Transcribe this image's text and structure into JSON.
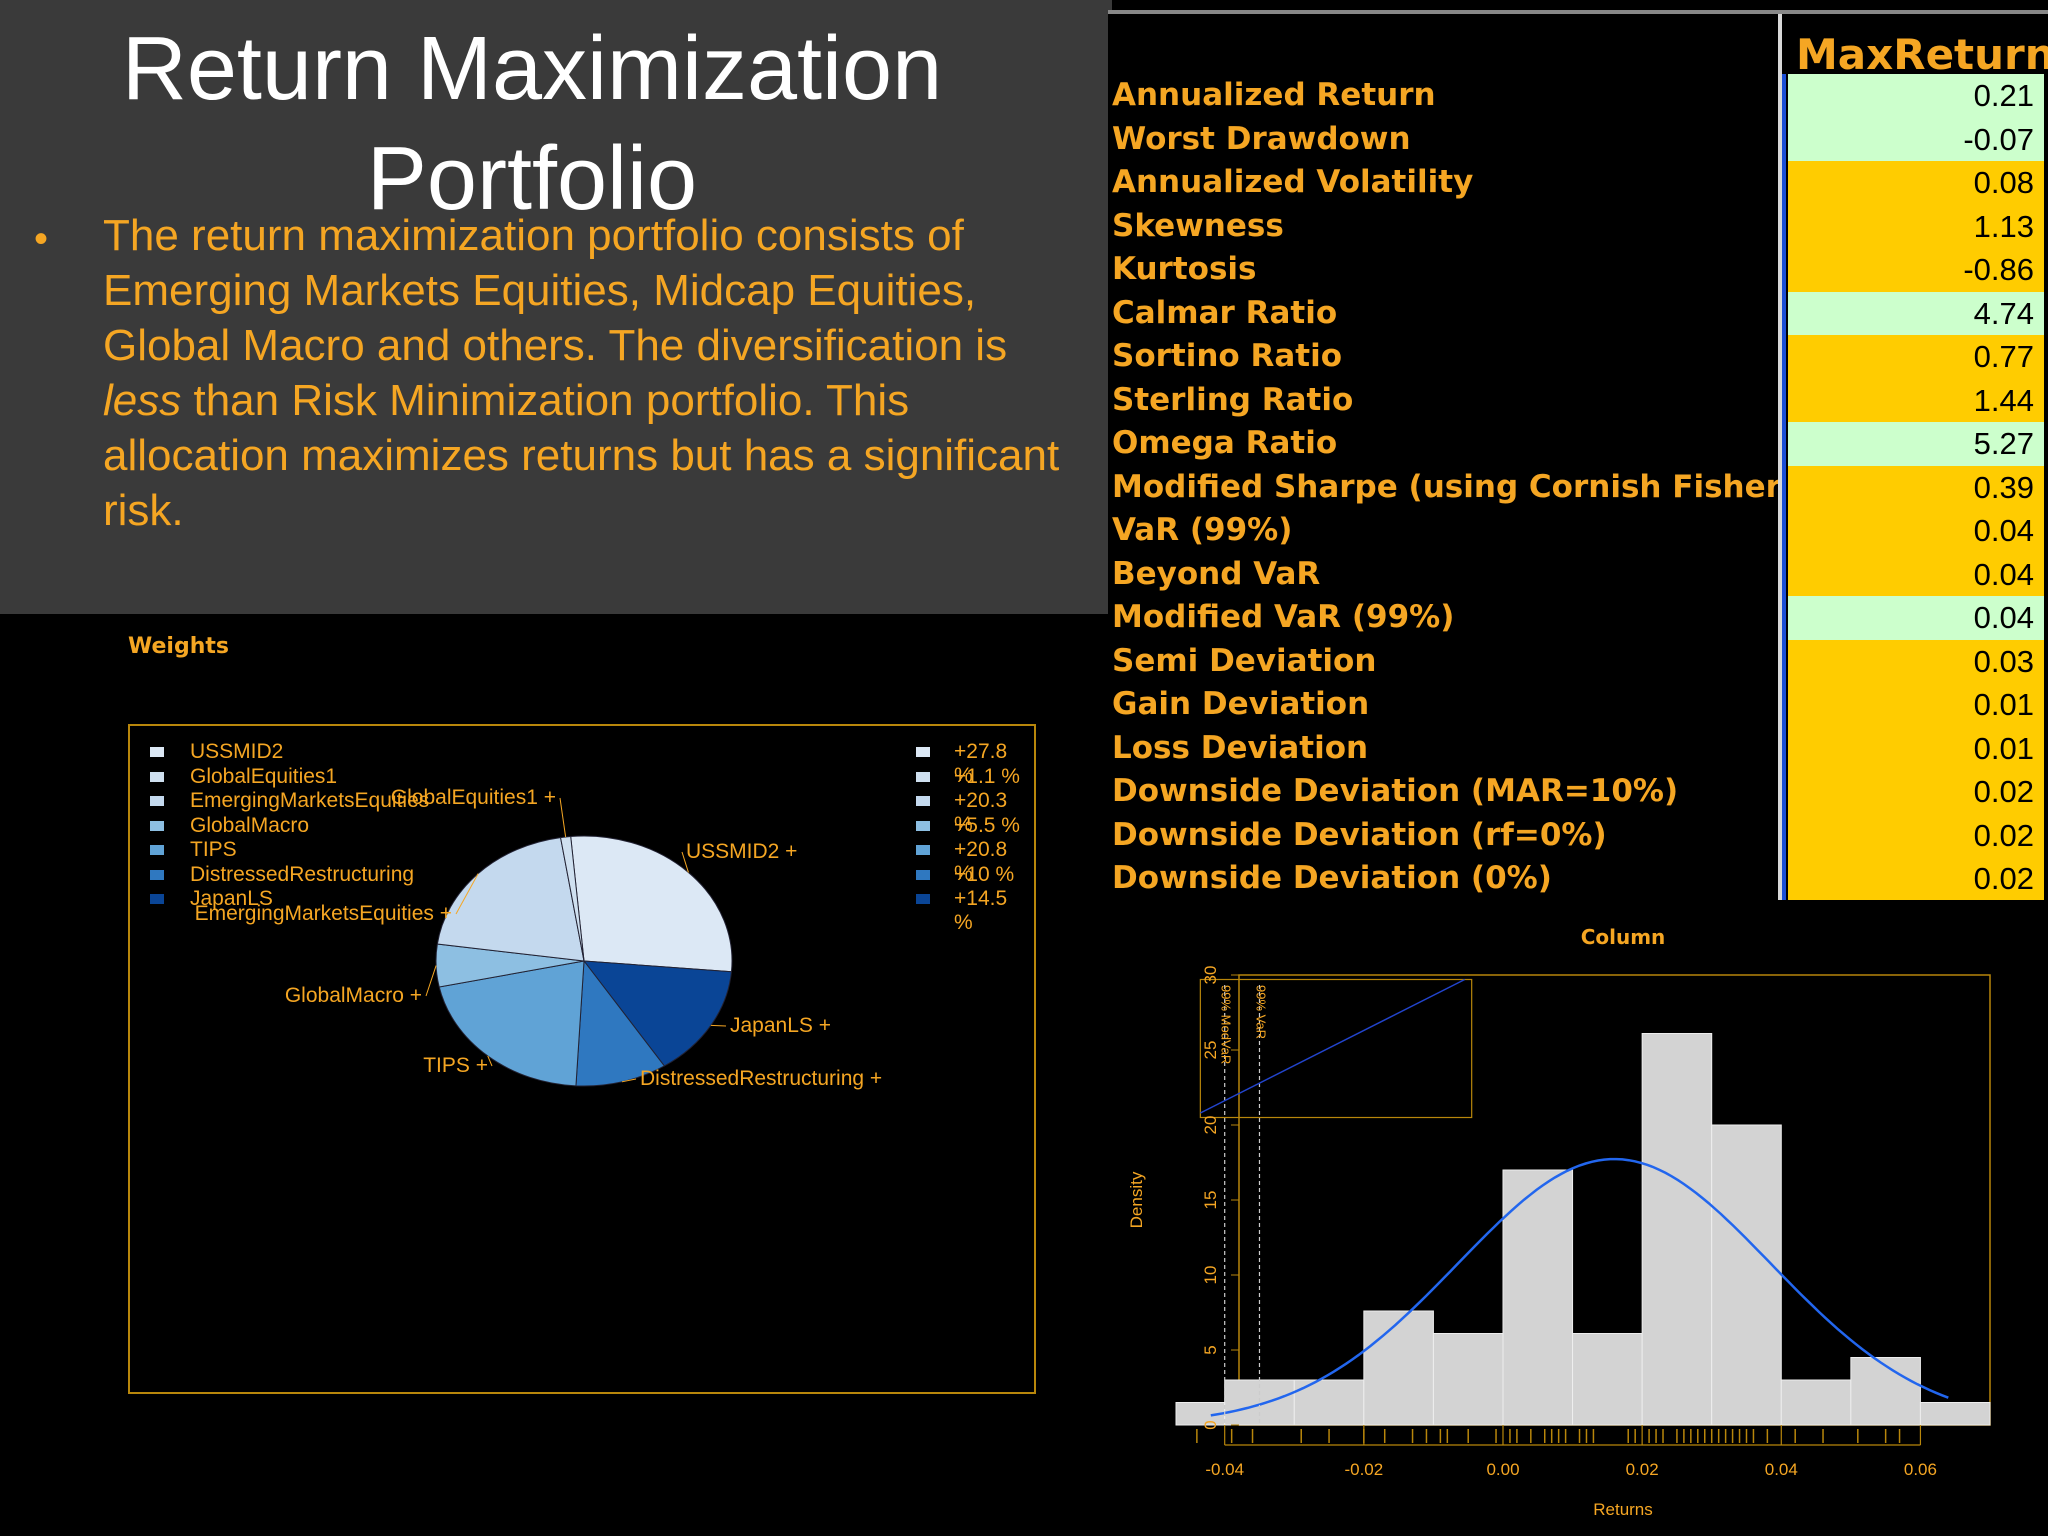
{
  "slide": {
    "title_line1": "Return Maximization",
    "title_line2": "Portfolio",
    "bullet_marker": "•",
    "bullet_part1": "The return maximization portfolio consists of Emerging Markets Equities, Midcap Equities, Global Macro and others. The diversification is ",
    "bullet_emph": "less",
    "bullet_part2": " than Risk Minimization portfolio. This allocation maximizes returns but has a significant risk."
  },
  "metrics_table": {
    "column_header": "MaxReturn",
    "rows": [
      {
        "label": "Annualized Return",
        "value": "0.21",
        "color": "#ccffcc"
      },
      {
        "label": "Worst Drawdown",
        "value": "-0.07",
        "color": "#ccffcc"
      },
      {
        "label": "Annualized Volatility",
        "value": "0.08",
        "color": "#ffcc00"
      },
      {
        "label": "Skewness",
        "value": "1.13",
        "color": "#ffcc00"
      },
      {
        "label": "Kurtosis",
        "value": "-0.86",
        "color": "#ffcc00"
      },
      {
        "label": "Calmar Ratio",
        "value": "4.74",
        "color": "#ccffcc"
      },
      {
        "label": "Sortino Ratio",
        "value": "0.77",
        "color": "#ffcc00"
      },
      {
        "label": "Sterling Ratio",
        "value": "1.44",
        "color": "#ffcc00"
      },
      {
        "label": "Omega Ratio",
        "value": "5.27",
        "color": "#ccffcc"
      },
      {
        "label": "Modified Sharpe (using Cornish Fisher Va",
        "value": "0.39",
        "color": "#ffcc00"
      },
      {
        "label": "VaR (99%)",
        "value": "0.04",
        "color": "#ffcc00"
      },
      {
        "label": "Beyond VaR",
        "value": "0.04",
        "color": "#ffcc00"
      },
      {
        "label": "Modified VaR (99%)",
        "value": "0.04",
        "color": "#ccffcc"
      },
      {
        "label": "Semi Deviation",
        "value": "0.03",
        "color": "#ffcc00"
      },
      {
        "label": "Gain Deviation",
        "value": "0.01",
        "color": "#ffcc00"
      },
      {
        "label": "Loss Deviation",
        "value": "0.01",
        "color": "#ffcc00"
      },
      {
        "label": "Downside Deviation (MAR=10%)",
        "value": "0.02",
        "color": "#ffcc00"
      },
      {
        "label": "Downside Deviation (rf=0%)",
        "value": "0.02",
        "color": "#ffcc00"
      },
      {
        "label": "Downside Deviation (0%)",
        "value": "0.02",
        "color": "#ffcc00"
      }
    ]
  },
  "chart_data": [
    {
      "type": "pie",
      "title": "Weights",
      "slices": [
        {
          "name": "USSMID2",
          "label": "USSMID2 +",
          "value": 27.8,
          "pct_label": "+27.8 %",
          "color": "#dce8f5"
        },
        {
          "name": "GlobalEquities1",
          "label": "GlobalEquities1 +",
          "value": 1.1,
          "pct_label": "+1.1 %",
          "color": "#cfe0f0"
        },
        {
          "name": "EmergingMarketsEquities",
          "label": "EmergingMarketsEquities +",
          "value": 20.3,
          "pct_label": "+20.3 %",
          "color": "#c4d9ee"
        },
        {
          "name": "GlobalMacro",
          "label": "GlobalMacro +",
          "value": 5.5,
          "pct_label": "+5.5 %",
          "color": "#8dbfe2"
        },
        {
          "name": "TIPS",
          "label": "TIPS +",
          "value": 20.8,
          "pct_label": "+20.8 %",
          "color": "#60a3d6"
        },
        {
          "name": "DistressedRestructuring",
          "label": "DistressedRestructuring +",
          "value": 10,
          "pct_label": "+10 %",
          "color": "#2f78c0"
        },
        {
          "name": "JapanLS",
          "label": "JapanLS +",
          "value": 14.5,
          "pct_label": "+14.5 %",
          "color": "#0a4596"
        }
      ]
    },
    {
      "type": "bar",
      "title": "Column",
      "xlabel": "Returns",
      "ylabel": "Density",
      "xlim": [
        -0.047,
        0.07
      ],
      "ylim": [
        0,
        30
      ],
      "x_ticks": [
        -0.04,
        -0.02,
        0.0,
        0.02,
        0.04,
        0.06
      ],
      "x_tick_labels": [
        "-0.04",
        "-0.02",
        "0.00",
        "0.02",
        "0.04",
        "0.06"
      ],
      "y_ticks": [
        0,
        5,
        10,
        15,
        20,
        25,
        30
      ],
      "y_tick_labels": [
        "0",
        "5",
        "10",
        "15",
        "20",
        "25",
        "30"
      ],
      "bins": [
        {
          "x0": -0.047,
          "x1": -0.04,
          "density": 1.5
        },
        {
          "x0": -0.04,
          "x1": -0.03,
          "density": 3
        },
        {
          "x0": -0.03,
          "x1": -0.02,
          "density": 3
        },
        {
          "x0": -0.02,
          "x1": -0.01,
          "density": 7.6
        },
        {
          "x0": -0.01,
          "x1": 0.0,
          "density": 6.1
        },
        {
          "x0": 0.0,
          "x1": 0.01,
          "density": 17
        },
        {
          "x0": 0.01,
          "x1": 0.02,
          "density": 6.1
        },
        {
          "x0": 0.02,
          "x1": 0.03,
          "density": 26.1
        },
        {
          "x0": 0.03,
          "x1": 0.04,
          "density": 20
        },
        {
          "x0": 0.04,
          "x1": 0.05,
          "density": 3
        },
        {
          "x0": 0.05,
          "x1": 0.06,
          "density": 4.5
        },
        {
          "x0": 0.06,
          "x1": 0.07,
          "density": 1.5
        }
      ],
      "normal_curve": {
        "mean": 0.016,
        "sd": 0.0225,
        "color": "#2266ee"
      },
      "vlines": [
        {
          "label": "99% ModVaR",
          "x": -0.04
        },
        {
          "label": "99% VaR",
          "x": -0.035
        }
      ],
      "rug": [
        -0.044,
        -0.039,
        -0.036,
        -0.029,
        -0.025,
        -0.02,
        -0.017,
        -0.013,
        -0.011,
        -0.009,
        -0.008,
        -0.005,
        -0.001,
        0.001,
        0.002,
        0.004,
        0.006,
        0.007,
        0.008,
        0.009,
        0.011,
        0.012,
        0.013,
        0.018,
        0.019,
        0.021,
        0.022,
        0.023,
        0.025,
        0.026,
        0.027,
        0.028,
        0.029,
        0.03,
        0.031,
        0.032,
        0.033,
        0.034,
        0.035,
        0.036,
        0.038,
        0.042,
        0.046,
        0.051,
        0.055,
        0.057
      ],
      "bar_color": "#d3d3d3",
      "axis_color": "#b8860b"
    }
  ]
}
